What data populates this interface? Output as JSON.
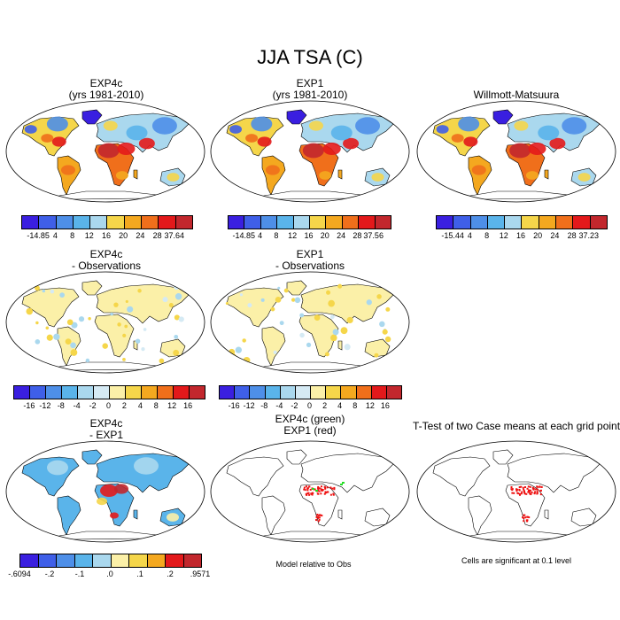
{
  "title": "JJA TSA (C)",
  "panels": [
    {
      "id": "p1",
      "title1": "EXP4c",
      "title2": "(yrs 1981-2010)",
      "kind": "temp",
      "ticks": [
        "-14.85",
        "4",
        "8",
        "12",
        "16",
        "20",
        "24",
        "28",
        "37.64"
      ]
    },
    {
      "id": "p2",
      "title1": "EXP1",
      "title2": "(yrs 1981-2010)",
      "kind": "temp",
      "ticks": [
        "-14.85",
        "4",
        "8",
        "12",
        "16",
        "20",
        "24",
        "28",
        "37.56"
      ]
    },
    {
      "id": "p3",
      "title1": "Willmott-Matsuura",
      "title2": "",
      "kind": "temp",
      "ticks": [
        "-15.44",
        "4",
        "8",
        "12",
        "16",
        "20",
        "24",
        "28",
        "37.23"
      ]
    },
    {
      "id": "p4",
      "title1": "EXP4c",
      "title2": "- Observations",
      "kind": "diff",
      "ticks": [
        "-16",
        "-12",
        "-8",
        "-4",
        "-2",
        "0",
        "2",
        "4",
        "8",
        "12",
        "16"
      ]
    },
    {
      "id": "p5",
      "title1": "EXP1",
      "title2": "- Observations",
      "kind": "diff",
      "ticks": [
        "-16",
        "-12",
        "-8",
        "-4",
        "-2",
        "0",
        "2",
        "4",
        "8",
        "12",
        "16"
      ]
    },
    {
      "id": "p7",
      "title1": "EXP4c",
      "title2": "- EXP1",
      "kind": "small",
      "ticks": [
        "-.6094",
        "-.2",
        "-.1",
        ".0",
        ".1",
        ".2",
        ".9571"
      ]
    },
    {
      "id": "p8",
      "title1": "EXP4c (green)",
      "title2": "EXP1 (red)",
      "kind": "sig2",
      "note": "Model relative to Obs"
    },
    {
      "id": "p9",
      "title1": "T-Test of two Case means at each grid point",
      "title2": "",
      "kind": "sig",
      "note": "Cells are significant at 0.1 level"
    }
  ],
  "colors": {
    "temp_scale": [
      "#3a1fe0",
      "#3f5fe8",
      "#4e8fe8",
      "#5ab4ea",
      "#aad8ee",
      "#f5d64a",
      "#f4a81f",
      "#f06f1b",
      "#e3191b",
      "#c2272d"
    ],
    "diff_scale": [
      "#3a1fe0",
      "#3f5fe8",
      "#4e8fe8",
      "#5ab4ea",
      "#aad8ee",
      "#d5eaf4",
      "#fbf0a8",
      "#f5d64a",
      "#f4a81f",
      "#f06f1b",
      "#e3191b",
      "#c2272d"
    ],
    "small_scale": [
      "#3a1fe0",
      "#3f5fe8",
      "#4e8fe8",
      "#5ab4ea",
      "#aad8ee",
      "#fbf0a8",
      "#f5d64a",
      "#f4a81f",
      "#e3191b",
      "#c2272d"
    ],
    "sig_red": "#ee1111",
    "sig_green": "#22dd22"
  }
}
